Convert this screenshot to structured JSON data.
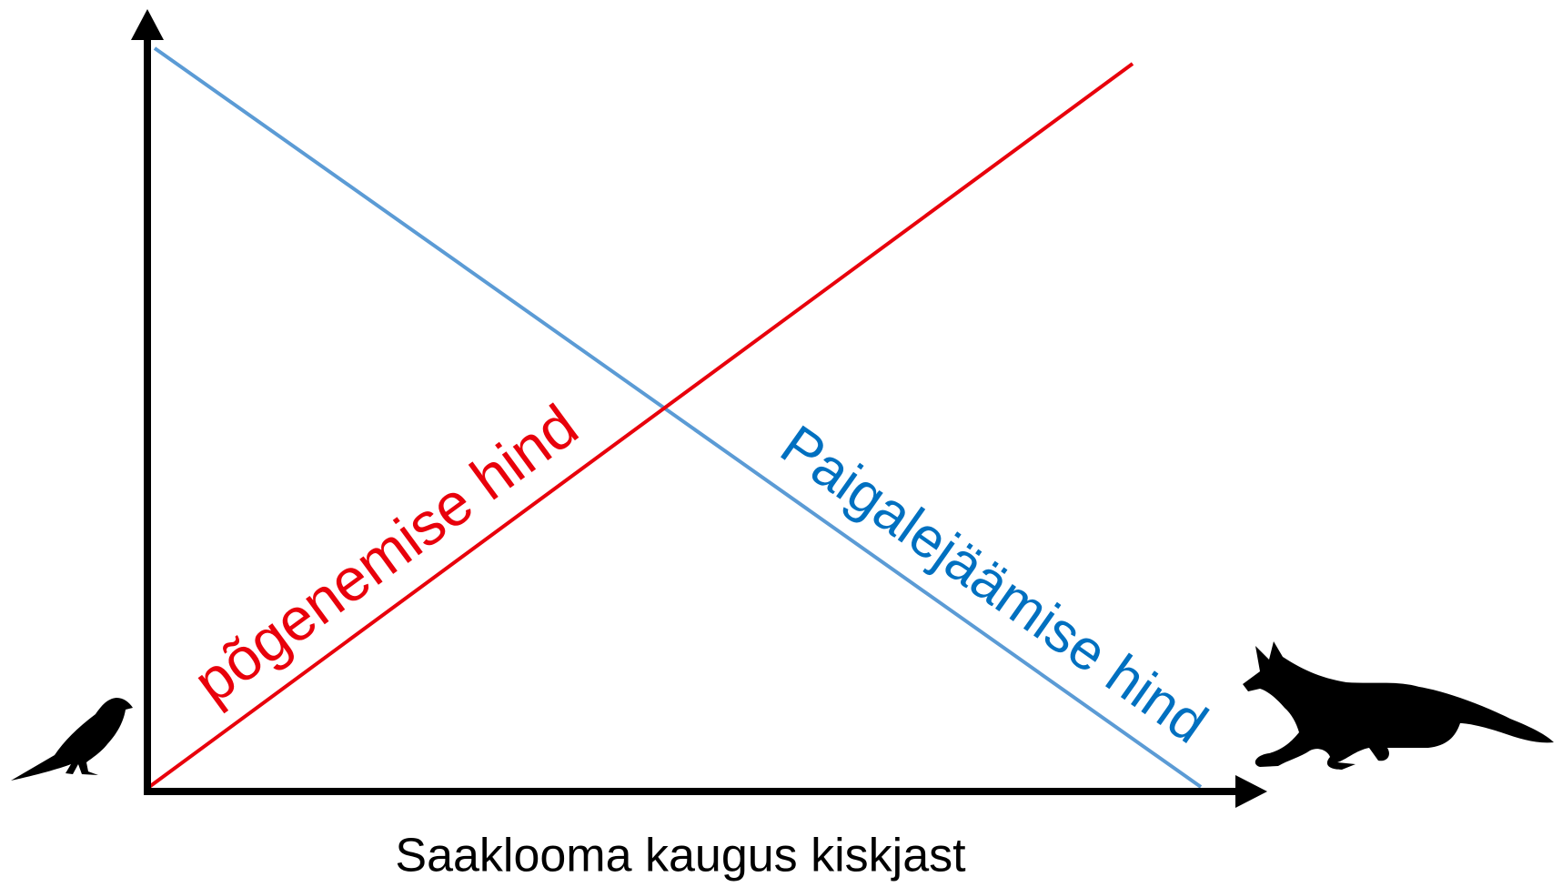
{
  "axis_label": "Saaklooma kaugus kiskjast",
  "curves": [
    {
      "label": "põgenemise hind"
    },
    {
      "label": "Paigalejäämise hind"
    }
  ]
}
